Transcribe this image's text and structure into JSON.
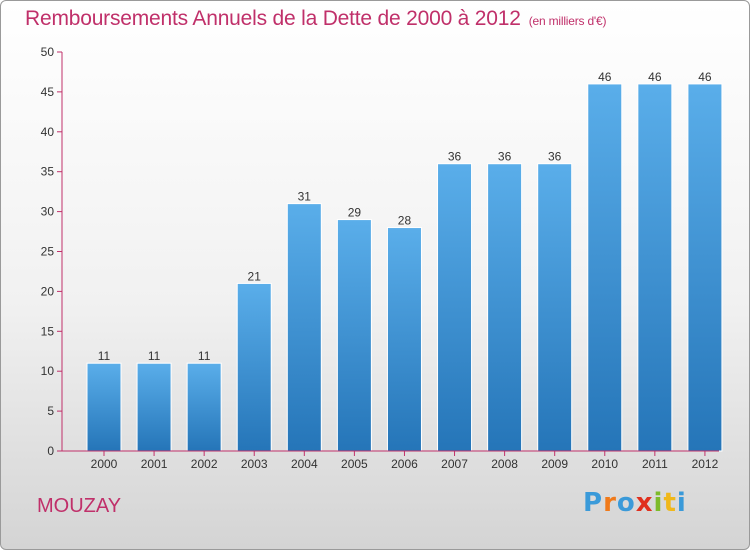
{
  "title": "Remboursements Annuels de la Dette de 2000 à 2012",
  "unit_note": "(en milliers d'€)",
  "town": "MOUZAY",
  "logo": {
    "letters": [
      "P",
      "r",
      "o",
      "x",
      "i",
      "t",
      "i"
    ],
    "colors": [
      "#3a9ad9",
      "#f07a1a",
      "#3a9ad9",
      "#e0301e",
      "#7dbb2a",
      "#f0b81a",
      "#3a9ad9"
    ]
  },
  "colors": {
    "bar_light": "#5aaeea",
    "bar_dark": "#2575b8",
    "axis": "#c0306a",
    "title": "#c0306a"
  },
  "chart_data": {
    "type": "bar",
    "categories": [
      "2000",
      "2001",
      "2002",
      "2003",
      "2004",
      "2005",
      "2006",
      "2007",
      "2008",
      "2009",
      "2010",
      "2011",
      "2012"
    ],
    "values": [
      11,
      11,
      11,
      21,
      31,
      29,
      28,
      36,
      36,
      36,
      46,
      46,
      46
    ],
    "value_labels": [
      "11",
      "11",
      "11",
      "21",
      "31",
      "29",
      "28",
      "36",
      "36",
      "36",
      "46",
      "46",
      "46"
    ],
    "title": "Remboursements Annuels de la Dette de 2000 à 2012",
    "xlabel": "",
    "ylabel": "",
    "ylim": [
      0,
      50
    ],
    "yticks": [
      0,
      5,
      10,
      15,
      20,
      25,
      30,
      35,
      40,
      45,
      50
    ],
    "ytick_labels": [
      "0",
      "5",
      "10",
      "15",
      "20",
      "25",
      "30",
      "35",
      "40",
      "45",
      "50"
    ],
    "grid": false,
    "legend": "none"
  }
}
